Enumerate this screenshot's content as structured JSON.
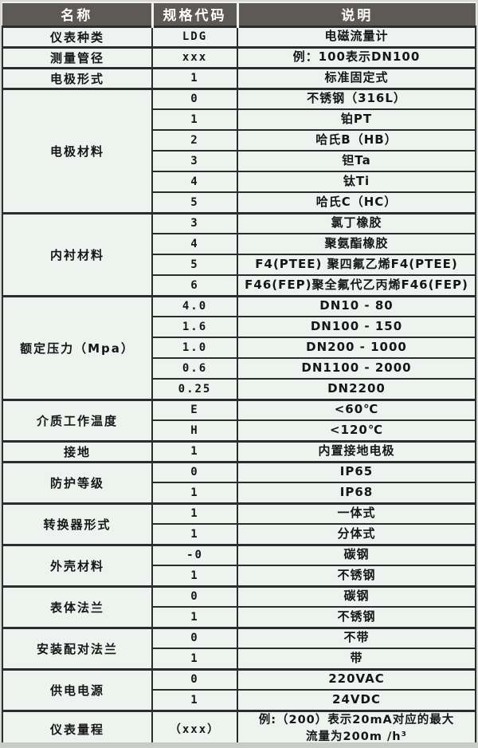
{
  "table": {
    "colors": {
      "page_bg": "#d6d8d5",
      "header_bg": "#5d5955",
      "header_text": "#ffffff",
      "cell_bg": "#edf3ee",
      "border_color": "#2d2d2d",
      "text_color": "#161616"
    },
    "headers": [
      "名称",
      "规格代码",
      "说明"
    ],
    "groups": [
      {
        "name": "仪表种类",
        "rows": [
          {
            "code": "LDG",
            "desc": "电磁流量计"
          }
        ]
      },
      {
        "name": "测量管径",
        "rows": [
          {
            "code": "xxx",
            "desc": "例：100表示DN100"
          }
        ]
      },
      {
        "name": "电极形式",
        "rows": [
          {
            "code": "1",
            "desc": "标准固定式"
          }
        ]
      },
      {
        "name": "电极材料",
        "rows": [
          {
            "code": "0",
            "desc": "不锈钢（316L）"
          },
          {
            "code": "1",
            "desc": "铂PT"
          },
          {
            "code": "2",
            "desc": "哈氏B（HB）"
          },
          {
            "code": "3",
            "desc": "钽Ta"
          },
          {
            "code": "4",
            "desc": "钛Ti"
          },
          {
            "code": "5",
            "desc": "哈氏C（HC）"
          }
        ]
      },
      {
        "name": "内衬材料",
        "rows": [
          {
            "code": "3",
            "desc": "氯丁橡胶"
          },
          {
            "code": "4",
            "desc": "聚氨酯橡胶"
          },
          {
            "code": "5",
            "desc": "F4(PTEE) 聚四氟乙烯F4(PTEE)"
          },
          {
            "code": "6",
            "desc": "F46(FEP)聚全氟代乙丙烯F46(FEP)"
          }
        ]
      },
      {
        "name": "额定压力（Mpa）",
        "rows": [
          {
            "code": "4.0",
            "desc": "DN10 - 80"
          },
          {
            "code": "1.6",
            "desc": "DN100 - 150"
          },
          {
            "code": "1.0",
            "desc": "DN200 - 1000"
          },
          {
            "code": "0.6",
            "desc": "DN1100 - 2000"
          },
          {
            "code": "0.25",
            "desc": "DN2200"
          }
        ]
      },
      {
        "name": "介质工作温度",
        "rows": [
          {
            "code": "E",
            "desc": "<60℃"
          },
          {
            "code": "H",
            "desc": "<120℃"
          }
        ]
      },
      {
        "name": "接地",
        "rows": [
          {
            "code": "1",
            "desc": "内置接地电极"
          }
        ]
      },
      {
        "name": "防护等级",
        "rows": [
          {
            "code": "0",
            "desc": "IP65"
          },
          {
            "code": "1",
            "desc": "IP68"
          }
        ]
      },
      {
        "name": "转换器形式",
        "rows": [
          {
            "code": "1",
            "desc": "一体式"
          },
          {
            "code": "1",
            "desc": "分体式"
          }
        ]
      },
      {
        "name": "外壳材料",
        "rows": [
          {
            "code": "-0",
            "desc": "碳钢"
          },
          {
            "code": "1",
            "desc": "不锈钢"
          }
        ]
      },
      {
        "name": "表体法兰",
        "rows": [
          {
            "code": "0",
            "desc": "碳钢"
          },
          {
            "code": "1",
            "desc": "不锈钢"
          }
        ]
      },
      {
        "name": "安装配对法兰",
        "rows": [
          {
            "code": "0",
            "desc": "不带"
          },
          {
            "code": "1",
            "desc": "带"
          }
        ]
      },
      {
        "name": "供电电源",
        "rows": [
          {
            "code": "0",
            "desc": "220VAC"
          },
          {
            "code": "1",
            "desc": "24VDC"
          }
        ]
      },
      {
        "name": "仪表量程",
        "tall": true,
        "rows": [
          {
            "code": "（xxx）",
            "desc": "例:（200）表示20mA对应的最大\n流量为200m /h³"
          }
        ]
      }
    ]
  }
}
